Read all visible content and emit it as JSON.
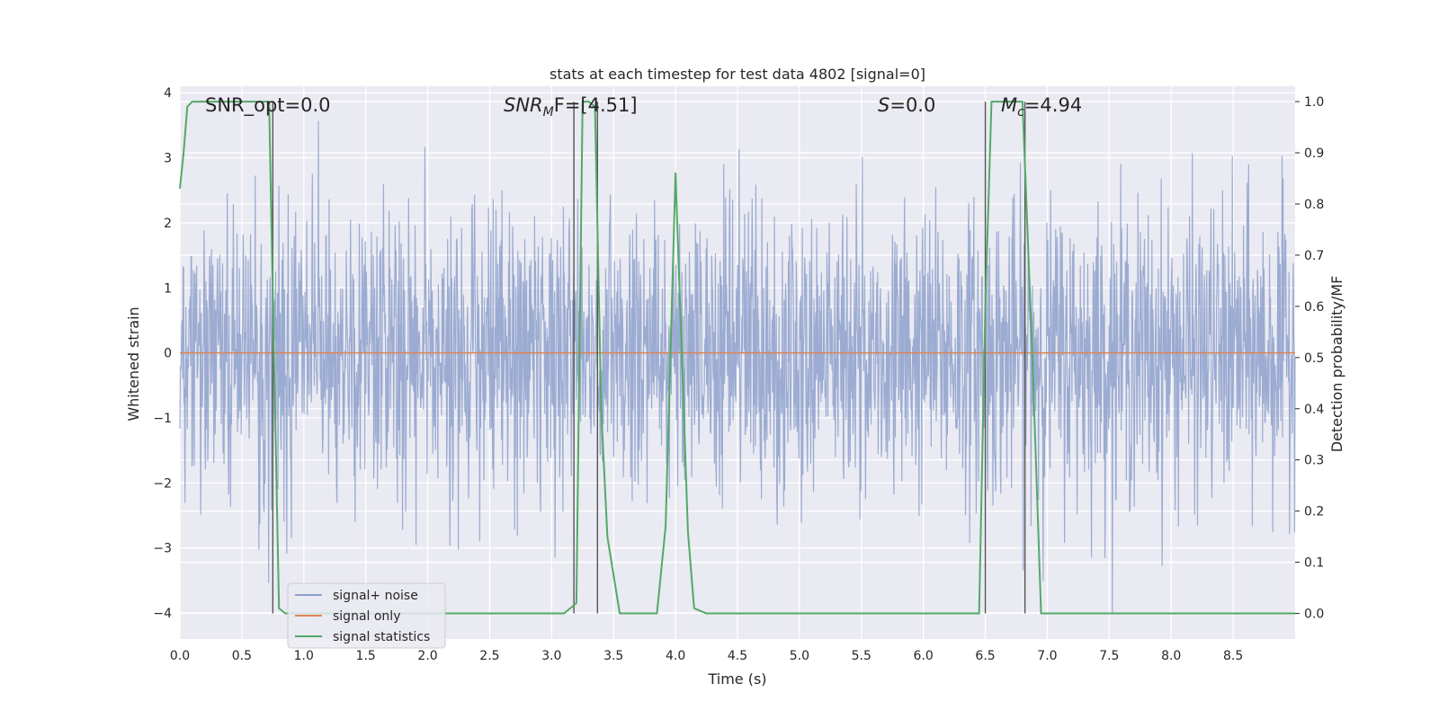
{
  "chart_data": {
    "type": "line",
    "title": "stats at each timestep for test data 4802 [signal=0]",
    "xlabel": "Time (s)",
    "ylabel": "Whitened strain",
    "ylabel_right": "Detection probability/MF",
    "xlim": [
      0.0,
      9.0
    ],
    "ylim": [
      -4.4,
      4.1
    ],
    "ylim_right": [
      -0.05,
      1.03
    ],
    "xticks": [
      "0.0",
      "0.5",
      "1.0",
      "1.5",
      "2.0",
      "2.5",
      "3.0",
      "3.5",
      "4.0",
      "4.5",
      "5.0",
      "5.5",
      "6.0",
      "6.5",
      "7.0",
      "7.5",
      "8.0",
      "8.5"
    ],
    "yticks_left": [
      "4",
      "3",
      "2",
      "1",
      "0",
      "−1",
      "−2",
      "−3",
      "−4"
    ],
    "yticks_right": [
      "1.0",
      "0.9",
      "0.8",
      "0.7",
      "0.6",
      "0.5",
      "0.4",
      "0.3",
      "0.2",
      "0.1",
      "0.0"
    ],
    "grid": true,
    "legend_position": "lower-left",
    "annotations": {
      "snr_opt": "SNR_opt=0.0",
      "snr_mf_main": "SNR",
      "snr_mf_sub": "M",
      "snr_mf_rest": "F=[4.51]",
      "s_main": "S",
      "s_rest": "=0.0",
      "mc_main": "M",
      "mc_sub": "c",
      "mc_rest": "=4.94"
    },
    "series": [
      {
        "name": "signal+ noise",
        "color": "#8da0cb",
        "description": "whitened noise, approx. amplitude within ±1.8 with peaks to ±3.6",
        "noise_envelope": 1.8
      },
      {
        "name": "signal only",
        "color": "#dd8452",
        "x": [
          0.0,
          9.0
        ],
        "y": [
          0.0,
          0.0
        ]
      },
      {
        "name": "signal statistics",
        "color": "#55a868",
        "axis": "right",
        "x": [
          0.0,
          0.03,
          0.06,
          0.1,
          0.2,
          0.5,
          0.72,
          0.75,
          0.8,
          0.85,
          3.1,
          3.2,
          3.25,
          3.3,
          3.35,
          3.4,
          3.45,
          3.55,
          3.85,
          3.92,
          4.0,
          4.1,
          4.15,
          4.25,
          6.45,
          6.5,
          6.55,
          6.6,
          6.8,
          6.88,
          6.95,
          9.0
        ],
        "y": [
          0.83,
          0.9,
          0.99,
          1.0,
          1.0,
          1.0,
          1.0,
          0.62,
          0.01,
          0.0,
          0.0,
          0.02,
          1.0,
          1.0,
          0.99,
          0.4,
          0.15,
          0.0,
          0.0,
          0.17,
          0.86,
          0.16,
          0.01,
          0.0,
          0.0,
          0.6,
          1.0,
          1.0,
          1.0,
          0.5,
          0.0,
          0.0
        ]
      }
    ],
    "vertical_lines": {
      "color": "#555555",
      "x": [
        0.75,
        3.18,
        3.37,
        6.5,
        6.82
      ],
      "y_top": 1.0
    }
  }
}
